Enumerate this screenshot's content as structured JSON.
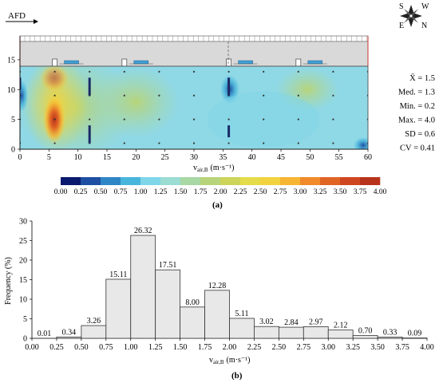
{
  "panel_a": {
    "afd_label": "AFD",
    "y_ticks": [
      "0",
      "5",
      "10",
      "15"
    ],
    "x_ticks": [
      "0",
      "5",
      "10",
      "15",
      "20",
      "25",
      "30",
      "35",
      "40",
      "45",
      "50",
      "55",
      "60"
    ],
    "x_label_main": "v",
    "x_label_sub": "air,B",
    "x_label_unit": "(m·s⁻¹)",
    "compass": {
      "n": "N",
      "s": "S",
      "e": "E",
      "w": "W"
    },
    "stats": [
      {
        "label": "X̄ = 1.5",
        "name": "stat-mean"
      },
      {
        "label": "Med. = 1.3",
        "name": "stat-median"
      },
      {
        "label": "Min. = 0.2",
        "name": "stat-min"
      },
      {
        "label": "Max. = 4.0",
        "name": "stat-max"
      },
      {
        "label": "SD = 0.6",
        "name": "stat-sd"
      },
      {
        "label": "CV = 0.41",
        "name": "stat-cv"
      }
    ],
    "colorbar": {
      "labels": [
        "0.00",
        "0.25",
        "0.50",
        "0.75",
        "1.00",
        "1.25",
        "1.50",
        "1.75",
        "2.00",
        "2.25",
        "2.50",
        "2.75",
        "3.00",
        "3.25",
        "3.50",
        "3.75",
        "4.00"
      ],
      "colors": [
        "#0a1a6e",
        "#1f4fa3",
        "#2f86c6",
        "#48b6dc",
        "#7fd6e8",
        "#9bdcd3",
        "#a8d8a4",
        "#b7d47a",
        "#cdd45a",
        "#e4dc4a",
        "#f3d23f",
        "#f6b533",
        "#f08a2a",
        "#e06424",
        "#cf4720",
        "#b8331c"
      ]
    },
    "caption": "(a)"
  },
  "chart_data": {
    "type": "bar",
    "xlabel": "v",
    "xlabel_sub": "air,B",
    "xlabel_unit": "(m·s⁻¹)",
    "ylabel": "Frequency (%)",
    "ylim": [
      0,
      30
    ],
    "xlim": [
      0.0,
      4.0
    ],
    "y_ticks": [
      "0",
      "5",
      "10",
      "15",
      "20",
      "25",
      "30"
    ],
    "x_ticks": [
      "0.00",
      "0.25",
      "0.50",
      "0.75",
      "1.00",
      "1.25",
      "1.50",
      "1.75",
      "2.00",
      "2.25",
      "2.50",
      "2.75",
      "3.00",
      "3.25",
      "3.50",
      "3.75",
      "4.00"
    ],
    "bins": [
      {
        "from": 0.0,
        "to": 0.25,
        "value": 0.01
      },
      {
        "from": 0.25,
        "to": 0.5,
        "value": 0.34
      },
      {
        "from": 0.5,
        "to": 0.75,
        "value": 3.26
      },
      {
        "from": 0.75,
        "to": 1.0,
        "value": 15.11
      },
      {
        "from": 1.0,
        "to": 1.25,
        "value": 26.32
      },
      {
        "from": 1.25,
        "to": 1.5,
        "value": 17.51
      },
      {
        "from": 1.5,
        "to": 1.75,
        "value": 8.0
      },
      {
        "from": 1.75,
        "to": 2.0,
        "value": 12.28
      },
      {
        "from": 2.0,
        "to": 2.25,
        "value": 5.11
      },
      {
        "from": 2.25,
        "to": 2.5,
        "value": 3.02
      },
      {
        "from": 2.5,
        "to": 2.75,
        "value": 2.84
      },
      {
        "from": 2.75,
        "to": 3.0,
        "value": 2.97
      },
      {
        "from": 3.0,
        "to": 3.25,
        "value": 2.12
      },
      {
        "from": 3.25,
        "to": 3.5,
        "value": 0.7
      },
      {
        "from": 3.5,
        "to": 3.75,
        "value": 0.33
      },
      {
        "from": 3.75,
        "to": 4.0,
        "value": 0.09
      }
    ],
    "labels": [
      "0.01",
      "0.34",
      "3.26",
      "15.11",
      "26.32",
      "17.51",
      "8.00",
      "12.28",
      "5.11",
      "3.02",
      "2.84",
      "2.97",
      "2.12",
      "0.70",
      "0.33",
      "0.09"
    ],
    "bar_color": "#e8e8e8",
    "grid": false,
    "caption": "(b)"
  }
}
